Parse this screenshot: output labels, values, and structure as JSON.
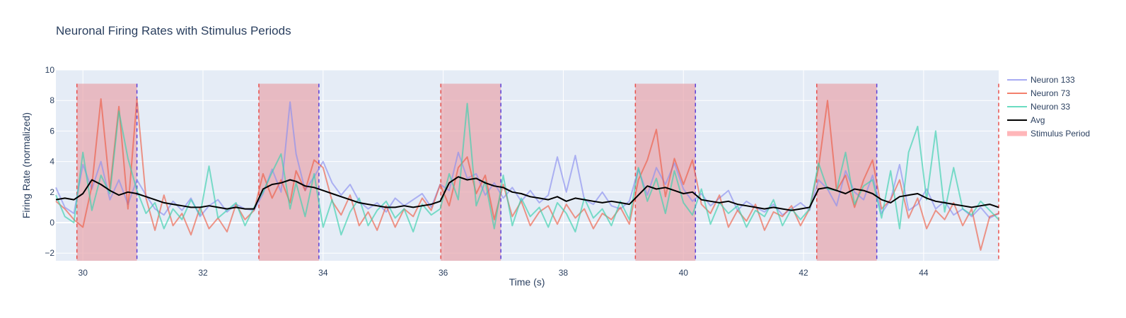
{
  "chart_data": {
    "type": "line",
    "title": "Neuronal Firing Rates with Stimulus Periods",
    "xlabel": "Time (s)",
    "ylabel": "Firing Rate (normalized)",
    "xlim": [
      29.55,
      45.25
    ],
    "ylim": [
      -2.5,
      10
    ],
    "xticks": [
      30,
      32,
      34,
      36,
      38,
      40,
      42,
      44
    ],
    "yticks": [
      -2,
      0,
      2,
      4,
      6,
      8,
      10
    ],
    "grid": true,
    "legend_position": "right",
    "stimulus_periods": [
      [
        29.9,
        30.9
      ],
      [
        32.93,
        33.93
      ],
      [
        35.96,
        36.96
      ],
      [
        39.2,
        40.2
      ],
      [
        42.22,
        43.22
      ],
      [
        45.25,
        45.25
      ]
    ],
    "stimulus_band_top": 9.1,
    "series": [
      {
        "name": "Neuron 133",
        "color": "#8a8fef",
        "opacity": 0.65,
        "width": 2,
        "x": [
          29.55,
          29.7,
          29.85,
          30.0,
          30.15,
          30.3,
          30.45,
          30.6,
          30.75,
          30.9,
          31.05,
          31.2,
          31.35,
          31.5,
          31.65,
          31.8,
          31.95,
          32.1,
          32.25,
          32.4,
          32.55,
          32.7,
          32.85,
          33.0,
          33.15,
          33.3,
          33.45,
          33.55,
          33.7,
          33.85,
          34.0,
          34.15,
          34.3,
          34.45,
          34.6,
          34.75,
          34.9,
          35.05,
          35.2,
          35.35,
          35.5,
          35.65,
          35.8,
          35.95,
          36.1,
          36.25,
          36.4,
          36.55,
          36.7,
          36.85,
          37.0,
          37.15,
          37.3,
          37.45,
          37.6,
          37.75,
          37.9,
          38.05,
          38.2,
          38.35,
          38.5,
          38.65,
          38.8,
          38.95,
          39.1,
          39.25,
          39.4,
          39.55,
          39.7,
          39.85,
          40.0,
          40.15,
          40.3,
          40.45,
          40.6,
          40.75,
          40.9,
          41.05,
          41.2,
          41.35,
          41.5,
          41.65,
          41.8,
          41.95,
          42.1,
          42.25,
          42.4,
          42.55,
          42.7,
          42.85,
          43.0,
          43.15,
          43.3,
          43.45,
          43.6,
          43.75,
          43.9,
          44.05,
          44.2,
          44.35,
          44.5,
          44.65,
          44.8,
          44.95,
          45.1,
          45.25
        ],
        "y": [
          2.3,
          1.0,
          0.6,
          3.8,
          2.2,
          4.0,
          1.5,
          2.8,
          1.2,
          2.8,
          1.8,
          0.9,
          0.5,
          1.4,
          0.8,
          1.6,
          0.4,
          1.1,
          1.5,
          0.7,
          1.2,
          0.9,
          0.8,
          1.9,
          3.5,
          2.0,
          7.9,
          4.5,
          2.1,
          3.0,
          4.0,
          2.6,
          1.8,
          2.5,
          1.4,
          0.9,
          1.3,
          0.7,
          1.6,
          1.1,
          1.5,
          1.9,
          1.0,
          2.5,
          2.1,
          4.6,
          2.9,
          3.2,
          1.8,
          2.6,
          1.6,
          2.3,
          1.4,
          2.1,
          1.3,
          1.8,
          4.3,
          2.0,
          4.4,
          1.5,
          1.2,
          2.0,
          1.1,
          0.9,
          1.4,
          3.5,
          1.8,
          3.6,
          2.5,
          3.9,
          2.2,
          1.4,
          1.9,
          1.1,
          1.6,
          2.1,
          0.8,
          1.4,
          1.0,
          0.7,
          1.2,
          0.5,
          0.9,
          1.3,
          0.8,
          2.8,
          2.2,
          1.1,
          3.4,
          2.0,
          1.5,
          3.1,
          0.6,
          1.5,
          3.8,
          0.8,
          1.2,
          2.2,
          0.9,
          1.4,
          0.5,
          0.9,
          0.4,
          1.0,
          0.3,
          0.6
        ]
      },
      {
        "name": "Neuron 73",
        "color": "#ef553b",
        "opacity": 0.6,
        "width": 2,
        "x": [
          29.55,
          29.7,
          29.85,
          30.0,
          30.15,
          30.3,
          30.45,
          30.6,
          30.75,
          30.9,
          31.05,
          31.2,
          31.35,
          31.5,
          31.65,
          31.8,
          31.95,
          32.1,
          32.25,
          32.4,
          32.55,
          32.7,
          32.85,
          33.0,
          33.15,
          33.3,
          33.45,
          33.55,
          33.7,
          33.85,
          34.0,
          34.15,
          34.3,
          34.45,
          34.6,
          34.75,
          34.9,
          35.05,
          35.2,
          35.35,
          35.5,
          35.65,
          35.8,
          35.95,
          36.1,
          36.25,
          36.4,
          36.55,
          36.7,
          36.85,
          37.0,
          37.15,
          37.3,
          37.45,
          37.6,
          37.75,
          37.9,
          38.05,
          38.2,
          38.35,
          38.5,
          38.65,
          38.8,
          38.95,
          39.1,
          39.25,
          39.4,
          39.55,
          39.7,
          39.85,
          40.0,
          40.15,
          40.3,
          40.45,
          40.6,
          40.75,
          40.9,
          41.05,
          41.2,
          41.35,
          41.5,
          41.65,
          41.8,
          41.95,
          42.1,
          42.25,
          42.4,
          42.55,
          42.7,
          42.85,
          43.0,
          43.15,
          43.3,
          43.45,
          43.6,
          43.75,
          43.9,
          44.05,
          44.2,
          44.35,
          44.5,
          44.65,
          44.8,
          44.95,
          45.1,
          45.25
        ],
        "y": [
          1.4,
          0.9,
          0.2,
          -0.3,
          2.4,
          8.1,
          2.2,
          7.6,
          0.9,
          8.1,
          1.6,
          -0.5,
          1.8,
          -0.2,
          0.6,
          -0.8,
          1.0,
          -0.4,
          0.3,
          -0.6,
          1.2,
          0.2,
          0.8,
          3.2,
          1.6,
          2.8,
          1.3,
          3.4,
          2.1,
          4.1,
          3.6,
          1.4,
          0.5,
          1.8,
          -0.2,
          0.7,
          -0.5,
          1.1,
          -0.3,
          0.9,
          0.4,
          1.6,
          0.8,
          2.5,
          1.1,
          3.6,
          4.3,
          1.9,
          3.1,
          0.2,
          2.5,
          0.4,
          1.4,
          -0.2,
          0.7,
          1.1,
          -0.1,
          1.2,
          0.3,
          0.9,
          -0.4,
          0.6,
          0.2,
          1.0,
          -0.1,
          2.8,
          4.1,
          6.1,
          1.7,
          4.2,
          2.5,
          4.1,
          1.2,
          0.6,
          1.8,
          -0.3,
          0.8,
          0.1,
          1.2,
          -0.5,
          0.7,
          0.4,
          1.1,
          -0.2,
          0.9,
          3.6,
          8.0,
          2.1,
          3.1,
          1.0,
          2.8,
          4.1,
          0.9,
          1.5,
          2.8,
          0.3,
          1.6,
          -0.4,
          0.8,
          0.2,
          1.3,
          -0.2,
          0.9,
          -1.8,
          0.4,
          0.6
        ]
      },
      {
        "name": "Neuron 33",
        "color": "#3ad1ae",
        "opacity": 0.65,
        "width": 2,
        "x": [
          29.55,
          29.7,
          29.85,
          30.0,
          30.15,
          30.3,
          30.45,
          30.6,
          30.75,
          30.9,
          31.05,
          31.2,
          31.35,
          31.5,
          31.65,
          31.8,
          31.95,
          32.1,
          32.25,
          32.4,
          32.55,
          32.7,
          32.85,
          33.0,
          33.15,
          33.3,
          33.45,
          33.55,
          33.7,
          33.85,
          34.0,
          34.15,
          34.3,
          34.45,
          34.6,
          34.75,
          34.9,
          35.05,
          35.2,
          35.35,
          35.5,
          35.65,
          35.8,
          35.95,
          36.1,
          36.25,
          36.4,
          36.55,
          36.7,
          36.85,
          37.0,
          37.15,
          37.3,
          37.45,
          37.6,
          37.75,
          37.9,
          38.05,
          38.2,
          38.35,
          38.5,
          38.65,
          38.8,
          38.95,
          39.1,
          39.25,
          39.4,
          39.55,
          39.7,
          39.85,
          40.0,
          40.15,
          40.3,
          40.45,
          40.6,
          40.75,
          40.9,
          41.05,
          41.2,
          41.35,
          41.5,
          41.65,
          41.8,
          41.95,
          42.1,
          42.25,
          42.4,
          42.55,
          42.7,
          42.85,
          43.0,
          43.15,
          43.3,
          43.45,
          43.6,
          43.75,
          43.9,
          44.05,
          44.2,
          44.35,
          44.5,
          44.65,
          44.8,
          44.95,
          45.1,
          45.25
        ],
        "y": [
          1.8,
          0.4,
          0.0,
          4.6,
          0.8,
          3.1,
          1.9,
          7.3,
          4.2,
          2.1,
          0.6,
          1.3,
          -0.4,
          0.9,
          0.2,
          1.5,
          0.5,
          3.7,
          0.3,
          0.8,
          1.3,
          -0.2,
          1.0,
          2.0,
          3.3,
          4.5,
          0.9,
          2.6,
          0.4,
          3.2,
          -0.3,
          1.5,
          -0.8,
          0.7,
          1.6,
          -0.2,
          0.8,
          1.4,
          0.3,
          0.9,
          -0.6,
          1.2,
          0.5,
          0.9,
          3.2,
          1.5,
          7.8,
          1.1,
          2.7,
          -0.4,
          3.1,
          -0.2,
          1.6,
          0.4,
          1.0,
          -0.3,
          1.3,
          0.6,
          -0.6,
          1.6,
          0.3,
          0.9,
          -0.2,
          1.4,
          0.2,
          3.6,
          1.4,
          2.9,
          0.6,
          3.4,
          1.3,
          0.5,
          2.2,
          -0.1,
          1.3,
          0.6,
          1.1,
          -0.3,
          0.8,
          0.4,
          1.5,
          -0.2,
          0.9,
          0.2,
          0.9,
          3.9,
          2.2,
          2.1,
          4.6,
          1.2,
          2.4,
          2.8,
          0.3,
          3.4,
          -0.4,
          4.6,
          6.3,
          1.5,
          6.0,
          0.7,
          3.6,
          0.9,
          0.5,
          1.4,
          0.8,
          0.2
        ]
      },
      {
        "name": "Avg",
        "color": "#000000",
        "opacity": 1,
        "width": 2,
        "x": [
          29.55,
          29.7,
          29.85,
          30.0,
          30.15,
          30.3,
          30.45,
          30.6,
          30.75,
          30.9,
          31.05,
          31.2,
          31.35,
          31.5,
          31.65,
          31.8,
          31.95,
          32.1,
          32.25,
          32.4,
          32.55,
          32.7,
          32.85,
          33.0,
          33.15,
          33.3,
          33.45,
          33.55,
          33.7,
          33.85,
          34.0,
          34.15,
          34.3,
          34.45,
          34.6,
          34.75,
          34.9,
          35.05,
          35.2,
          35.35,
          35.5,
          35.65,
          35.8,
          35.95,
          36.1,
          36.25,
          36.4,
          36.55,
          36.7,
          36.85,
          37.0,
          37.15,
          37.3,
          37.45,
          37.6,
          37.75,
          37.9,
          38.05,
          38.2,
          38.35,
          38.5,
          38.65,
          38.8,
          38.95,
          39.1,
          39.25,
          39.4,
          39.55,
          39.7,
          39.85,
          40.0,
          40.15,
          40.3,
          40.45,
          40.6,
          40.75,
          40.9,
          41.05,
          41.2,
          41.35,
          41.5,
          41.65,
          41.8,
          41.95,
          42.1,
          42.25,
          42.4,
          42.55,
          42.7,
          42.85,
          43.0,
          43.15,
          43.3,
          43.45,
          43.6,
          43.75,
          43.9,
          44.05,
          44.2,
          44.35,
          44.5,
          44.65,
          44.8,
          44.95,
          45.1,
          45.25
        ],
        "y": [
          1.5,
          1.6,
          1.5,
          1.9,
          2.8,
          2.5,
          2.1,
          1.8,
          2.0,
          1.9,
          1.7,
          1.5,
          1.3,
          1.2,
          1.1,
          1.0,
          1.0,
          1.1,
          1.0,
          0.9,
          1.0,
          0.9,
          0.9,
          2.2,
          2.5,
          2.6,
          2.8,
          2.7,
          2.4,
          2.3,
          2.1,
          1.9,
          1.7,
          1.5,
          1.3,
          1.2,
          1.1,
          1.0,
          1.0,
          1.1,
          1.0,
          1.1,
          1.2,
          1.4,
          2.6,
          3.0,
          2.8,
          2.9,
          2.6,
          2.4,
          2.3,
          2.0,
          1.9,
          1.7,
          1.6,
          1.5,
          1.7,
          1.4,
          1.6,
          1.5,
          1.4,
          1.3,
          1.4,
          1.3,
          1.2,
          1.8,
          2.4,
          2.2,
          2.3,
          2.1,
          1.9,
          2.0,
          1.5,
          1.4,
          1.3,
          1.4,
          1.2,
          1.1,
          1.0,
          0.9,
          1.0,
          0.9,
          0.8,
          0.9,
          1.0,
          2.2,
          2.3,
          2.1,
          1.9,
          2.2,
          2.1,
          1.9,
          1.5,
          1.3,
          1.7,
          1.8,
          1.9,
          1.6,
          1.4,
          1.3,
          1.2,
          1.1,
          1.0,
          1.1,
          1.2,
          1.0
        ]
      }
    ],
    "legend": [
      {
        "label": "Neuron 133",
        "color": "#8a8fef",
        "kind": "line"
      },
      {
        "label": "Neuron 73",
        "color": "#ef553b",
        "kind": "line"
      },
      {
        "label": "Neuron 33",
        "color": "#3ad1ae",
        "kind": "line"
      },
      {
        "label": "Avg",
        "color": "#000000",
        "kind": "line"
      },
      {
        "label": "Stimulus Period",
        "color": "#ffb6b9",
        "kind": "band"
      }
    ]
  },
  "colors": {
    "plot_bg": "#e5ecf6",
    "grid": "#ffffff",
    "text": "#2a3f5f",
    "stimulus_fill": "#e8a5ad",
    "stimulus_start": "#e8504b",
    "stimulus_end": "#5a3fd8"
  }
}
